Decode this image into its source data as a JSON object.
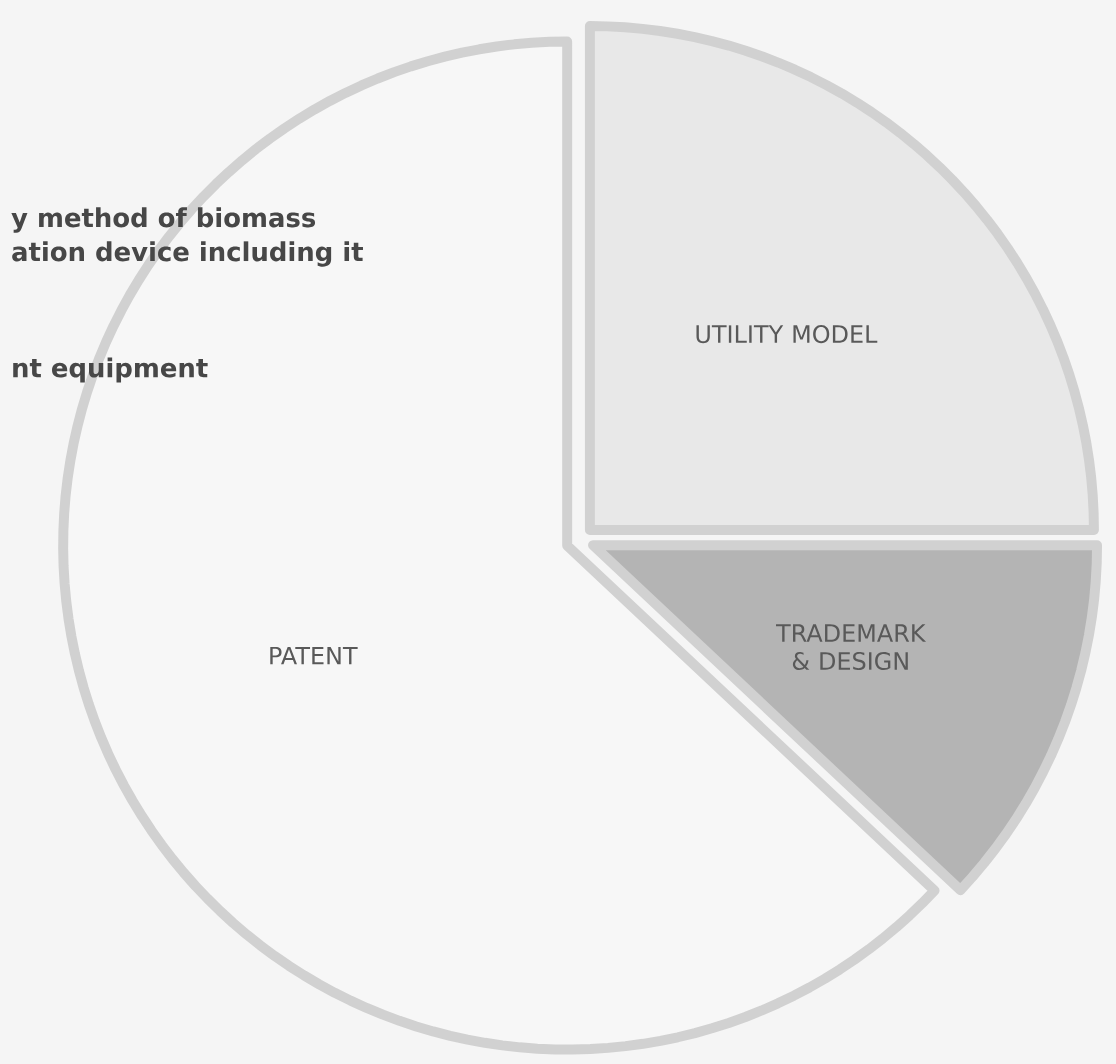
{
  "chart_data": {
    "type": "pie",
    "categories": [
      "UTILITY MODEL",
      "TRADEMARK & DESIGN",
      "PATENT"
    ],
    "values": [
      25,
      12,
      63
    ],
    "colors": [
      "#e8e8e8",
      "#b4b4b4",
      "#f7f7f7"
    ],
    "annotations": [
      "y method of biomass",
      "ation device including it",
      "nt  equipment"
    ]
  }
}
